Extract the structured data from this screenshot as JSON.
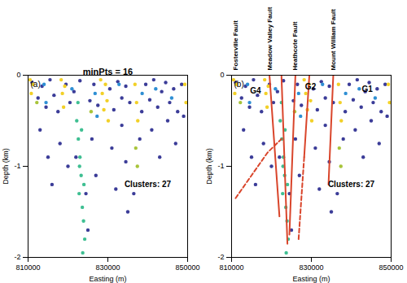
{
  "chart_data": [
    {
      "type": "scatter",
      "panel_label": "(a)",
      "title": "minPts = 16",
      "x_label": "Easting (m)",
      "y_label": "Depth (km)",
      "xlim": [
        810000,
        850000
      ],
      "xticks": [
        810000,
        830000,
        850000
      ],
      "ylim": [
        -2,
        0
      ],
      "yticks": [
        -2,
        -1,
        0
      ],
      "series": [
        {
          "color": "#3b3c98",
          "points": [
            [
              811000,
              -0.08
            ],
            [
              812500,
              -0.25
            ],
            [
              813500,
              -0.12
            ],
            [
              814500,
              -0.35
            ],
            [
              815500,
              -0.05
            ],
            [
              816500,
              -0.22
            ],
            [
              817500,
              -0.4
            ],
            [
              819500,
              -0.1
            ],
            [
              820500,
              -0.3
            ],
            [
              821500,
              -0.18
            ],
            [
              823000,
              -0.06
            ],
            [
              825500,
              -0.28
            ],
            [
              826500,
              -0.1
            ],
            [
              827500,
              -0.33
            ],
            [
              830500,
              -0.15
            ],
            [
              831500,
              -0.38
            ],
            [
              832500,
              -0.07
            ],
            [
              833500,
              -0.25
            ],
            [
              834500,
              -0.12
            ],
            [
              835500,
              -0.3
            ],
            [
              838500,
              -0.4
            ],
            [
              839500,
              -0.1
            ],
            [
              840500,
              -0.27
            ],
            [
              841500,
              -0.05
            ],
            [
              842500,
              -0.35
            ],
            [
              843500,
              -0.18
            ],
            [
              844500,
              -0.08
            ],
            [
              845500,
              -0.3
            ],
            [
              846500,
              -0.15
            ],
            [
              847500,
              -0.4
            ],
            [
              848500,
              -0.1
            ],
            [
              813000,
              -0.6
            ],
            [
              815000,
              -0.9
            ],
            [
              816000,
              -1.2
            ],
            [
              818000,
              -0.75
            ],
            [
              820000,
              -1.0
            ],
            [
              824500,
              -1.3
            ],
            [
              826000,
              -0.7
            ],
            [
              827000,
              -1.1
            ],
            [
              831000,
              -0.8
            ],
            [
              832000,
              -1.25
            ],
            [
              833500,
              -0.55
            ],
            [
              834500,
              -0.95
            ],
            [
              835000,
              -1.5
            ],
            [
              836500,
              -1.3
            ],
            [
              838000,
              -0.7
            ],
            [
              841000,
              -0.6
            ],
            [
              843000,
              -0.9
            ],
            [
              845000,
              -0.5
            ],
            [
              847000,
              -0.75
            ],
            [
              849000,
              -0.45
            ],
            [
              825000,
              -1.7
            ],
            [
              822000,
              -0.9
            ]
          ]
        },
        {
          "color": "#2e8fd4",
          "points": [
            [
              814000,
              -0.1
            ],
            [
              814500,
              -0.3
            ],
            [
              821000,
              -0.15
            ],
            [
              826800,
              -0.2
            ],
            [
              827300,
              -0.45
            ],
            [
              832800,
              -0.1
            ],
            [
              838600,
              -0.2
            ],
            [
              842000,
              -0.15
            ],
            [
              846000,
              -0.25
            ]
          ]
        },
        {
          "color": "#3fbf92",
          "points": [
            [
              822200,
              -0.5
            ],
            [
              822600,
              -0.7
            ],
            [
              823000,
              -0.9
            ],
            [
              823300,
              -1.1
            ],
            [
              822800,
              -1.3
            ],
            [
              823600,
              -1.45
            ],
            [
              823900,
              -1.6
            ],
            [
              824200,
              -1.8
            ],
            [
              823400,
              -0.6
            ],
            [
              822900,
              -1.0
            ],
            [
              824000,
              -1.2
            ],
            [
              823700,
              -1.95
            ],
            [
              822500,
              -0.3
            ]
          ]
        },
        {
          "color": "#a8c43a",
          "points": [
            [
              837000,
              -0.8
            ],
            [
              837400,
              -1.0
            ],
            [
              825800,
              -0.4
            ],
            [
              812200,
              -0.3
            ]
          ]
        },
        {
          "color": "#f2d027",
          "points": [
            [
              810500,
              -0.05
            ],
            [
              810800,
              -0.2
            ],
            [
              811200,
              -0.1
            ],
            [
              818300,
              -0.05
            ],
            [
              818600,
              -0.2
            ],
            [
              818900,
              -0.35
            ],
            [
              819200,
              -0.12
            ],
            [
              828200,
              -0.05
            ],
            [
              828600,
              -0.2
            ],
            [
              829000,
              -0.38
            ],
            [
              829400,
              -0.1
            ],
            [
              829800,
              -0.28
            ],
            [
              830100,
              -0.5
            ],
            [
              836800,
              -0.1
            ],
            [
              837200,
              -0.3
            ],
            [
              837500,
              -0.5
            ],
            [
              849300,
              -0.1
            ],
            [
              849600,
              -0.3
            ]
          ]
        }
      ],
      "annotations": [
        {
          "text": "Clusters: 27",
          "x": 840000,
          "y": -1.2
        }
      ]
    },
    {
      "type": "scatter",
      "panel_label": "(b)",
      "x_label": "Easting (m)",
      "y_label": "Depth (km)",
      "xlim": [
        810000,
        850000
      ],
      "xticks": [
        810000,
        830000,
        850000
      ],
      "ylim": [
        -2,
        0
      ],
      "yticks": [
        -2,
        -1,
        0
      ],
      "series": [
        {
          "color": "#3b3c98",
          "points": [
            [
              811000,
              -0.08
            ],
            [
              812500,
              -0.25
            ],
            [
              813500,
              -0.12
            ],
            [
              814500,
              -0.35
            ],
            [
              815500,
              -0.05
            ],
            [
              816500,
              -0.22
            ],
            [
              817500,
              -0.4
            ],
            [
              819500,
              -0.1
            ],
            [
              820500,
              -0.3
            ],
            [
              821500,
              -0.18
            ],
            [
              823000,
              -0.06
            ],
            [
              825500,
              -0.28
            ],
            [
              826500,
              -0.1
            ],
            [
              827500,
              -0.33
            ],
            [
              830500,
              -0.15
            ],
            [
              831500,
              -0.38
            ],
            [
              832500,
              -0.07
            ],
            [
              833500,
              -0.25
            ],
            [
              834500,
              -0.12
            ],
            [
              835500,
              -0.3
            ],
            [
              838500,
              -0.4
            ],
            [
              839500,
              -0.1
            ],
            [
              840500,
              -0.27
            ],
            [
              841500,
              -0.05
            ],
            [
              842500,
              -0.35
            ],
            [
              843500,
              -0.18
            ],
            [
              844500,
              -0.08
            ],
            [
              845500,
              -0.3
            ],
            [
              846500,
              -0.15
            ],
            [
              847500,
              -0.4
            ],
            [
              848500,
              -0.1
            ],
            [
              813000,
              -0.6
            ],
            [
              815000,
              -0.9
            ],
            [
              816000,
              -1.2
            ],
            [
              818000,
              -0.75
            ],
            [
              820000,
              -1.0
            ],
            [
              824500,
              -1.3
            ],
            [
              826000,
              -0.7
            ],
            [
              827000,
              -1.1
            ],
            [
              831000,
              -0.8
            ],
            [
              832000,
              -1.25
            ],
            [
              833500,
              -0.55
            ],
            [
              834500,
              -0.95
            ],
            [
              835000,
              -1.5
            ],
            [
              836500,
              -1.3
            ],
            [
              838000,
              -0.7
            ],
            [
              841000,
              -0.6
            ],
            [
              843000,
              -0.9
            ],
            [
              845000,
              -0.5
            ],
            [
              847000,
              -0.75
            ],
            [
              849000,
              -0.45
            ],
            [
              825000,
              -1.7
            ],
            [
              822000,
              -0.9
            ]
          ]
        },
        {
          "color": "#2e8fd4",
          "points": [
            [
              814000,
              -0.1
            ],
            [
              814500,
              -0.3
            ],
            [
              821000,
              -0.15
            ],
            [
              826800,
              -0.2
            ],
            [
              827300,
              -0.45
            ],
            [
              832800,
              -0.1
            ],
            [
              838600,
              -0.2
            ],
            [
              842000,
              -0.15
            ],
            [
              846000,
              -0.25
            ]
          ]
        },
        {
          "color": "#3fbf92",
          "points": [
            [
              822200,
              -0.5
            ],
            [
              822600,
              -0.7
            ],
            [
              823000,
              -0.9
            ],
            [
              823300,
              -1.1
            ],
            [
              822800,
              -1.3
            ],
            [
              823600,
              -1.45
            ],
            [
              823900,
              -1.6
            ],
            [
              824200,
              -1.8
            ],
            [
              823400,
              -0.6
            ],
            [
              822900,
              -1.0
            ],
            [
              824000,
              -1.2
            ],
            [
              823700,
              -1.95
            ],
            [
              822500,
              -0.3
            ]
          ]
        },
        {
          "color": "#a8c43a",
          "points": [
            [
              837000,
              -0.8
            ],
            [
              837400,
              -1.0
            ],
            [
              825800,
              -0.4
            ],
            [
              812200,
              -0.3
            ]
          ]
        },
        {
          "color": "#f2d027",
          "points": [
            [
              810500,
              -0.05
            ],
            [
              810800,
              -0.2
            ],
            [
              811200,
              -0.1
            ],
            [
              818300,
              -0.05
            ],
            [
              818600,
              -0.2
            ],
            [
              818900,
              -0.35
            ],
            [
              819200,
              -0.12
            ],
            [
              828200,
              -0.05
            ],
            [
              828600,
              -0.2
            ],
            [
              829000,
              -0.38
            ],
            [
              829400,
              -0.1
            ],
            [
              829800,
              -0.28
            ],
            [
              830100,
              -0.5
            ],
            [
              836800,
              -0.1
            ],
            [
              837200,
              -0.3
            ],
            [
              837500,
              -0.5
            ],
            [
              849300,
              -0.1
            ],
            [
              849600,
              -0.3
            ]
          ]
        }
      ],
      "faults": [
        {
          "name": "Fosterville Fault",
          "color": "#d9452b",
          "segments": [
            {
              "line_style": "dashed",
              "x": [
                811000,
                815000,
                819000,
                822500
              ],
              "y": [
                -1.35,
                -1.1,
                -0.85,
                -0.7
              ]
            }
          ]
        },
        {
          "name": "Meadow Valley Fault",
          "color": "#d9452b",
          "segments": [
            {
              "line_style": "solid",
              "x": [
                819500,
                822000
              ],
              "y": [
                0,
                -1.55
              ]
            },
            {
              "line_style": "solid",
              "x": [
                822500,
                824000
              ],
              "y": [
                0,
                -1.85
              ]
            }
          ]
        },
        {
          "name": "Heathcote Fault",
          "color": "#d9452b",
          "segments": [
            {
              "line_style": "solid",
              "x": [
                826000,
                824500
              ],
              "y": [
                0,
                -1.75
              ]
            },
            {
              "line_style": "solid",
              "x": [
                829500,
                828200
              ],
              "y": [
                0,
                -0.9
              ]
            },
            {
              "line_style": "dashed",
              "x": [
                828200,
                826800
              ],
              "y": [
                -0.9,
                -1.8
              ]
            }
          ]
        },
        {
          "name": "Mount William Fault",
          "color": "#d9452b",
          "segments": [
            {
              "line_style": "solid",
              "x": [
                835500,
                834300
              ],
              "y": [
                0,
                -1.2
              ]
            }
          ]
        }
      ],
      "annotations": [
        {
          "text": "G4",
          "x": 816000,
          "y": -0.17
        },
        {
          "text": "G2",
          "x": 829800,
          "y": -0.13
        },
        {
          "text": "G1",
          "x": 844000,
          "y": -0.15
        },
        {
          "text": "Clusters: 27",
          "x": 840000,
          "y": -1.2
        }
      ]
    }
  ]
}
